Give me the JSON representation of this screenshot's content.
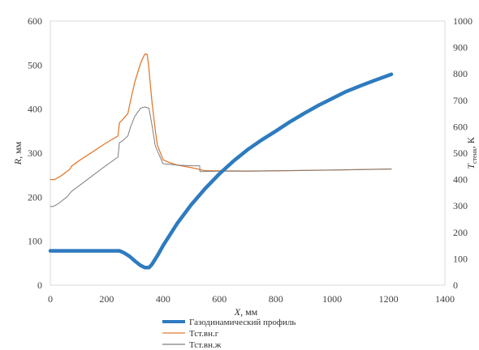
{
  "chart_data": {
    "type": "line",
    "x_ticks": [
      "0",
      "200",
      "400",
      "600",
      "800",
      "1000",
      "1200",
      "1400"
    ],
    "y_ticks": [
      "0",
      "100",
      "200",
      "300",
      "400",
      "500",
      "600"
    ],
    "y2_ticks": [
      "0",
      "100",
      "200",
      "300",
      "400",
      "500",
      "600",
      "700",
      "800",
      "900",
      "1000"
    ],
    "xlim": [
      0,
      1400
    ],
    "ylim": [
      0,
      600
    ],
    "y2lim": [
      0,
      1000
    ],
    "grid": false,
    "legend_position": "bottom",
    "x_axis_label": {
      "main": "X",
      "unit": ", мм"
    },
    "y_axis_label": {
      "main": "R",
      "unit": ", мм"
    },
    "y2_axis_label": {
      "main": "T",
      "sub": "стенк",
      "unit": ", К"
    },
    "series": [
      {
        "name": "Газодинамический профиль",
        "axis": "left",
        "color": "#2e7bbf",
        "width": 4.5,
        "x": [
          0,
          200,
          245,
          260,
          280,
          300,
          320,
          335,
          350,
          360,
          380,
          400,
          450,
          500,
          550,
          600,
          650,
          700,
          750,
          800,
          850,
          900,
          950,
          1000,
          1050,
          1100,
          1150,
          1210
        ],
        "y": [
          78,
          78,
          78,
          74,
          66,
          55,
          45,
          40,
          40,
          47,
          67,
          90,
          140,
          183,
          220,
          253,
          282,
          308,
          330,
          350,
          371,
          390,
          408,
          424,
          440,
          453,
          465,
          479
        ]
      },
      {
        "name": "Тст.вн.г",
        "axis": "right",
        "color": "#e07b30",
        "width": 1.3,
        "x": [
          0,
          15,
          40,
          70,
          75,
          100,
          150,
          200,
          240,
          245,
          255,
          275,
          285,
          300,
          320,
          335,
          343,
          348,
          360,
          372,
          380,
          400,
          420,
          450,
          500,
          550,
          600,
          700,
          800,
          1000,
          1210
        ],
        "y": [
          400,
          400,
          415,
          440,
          450,
          470,
          505,
          540,
          565,
          615,
          625,
          650,
          700,
          770,
          840,
          875,
          875,
          840,
          700,
          590,
          530,
          475,
          465,
          455,
          445,
          433,
          433,
          432,
          433,
          436,
          440
        ]
      },
      {
        "name": "Тст.вн.ж",
        "axis": "right",
        "color": "#7f7f7f",
        "width": 1.0,
        "x": [
          0,
          10,
          30,
          60,
          75,
          100,
          150,
          200,
          240,
          245,
          255,
          275,
          285,
          300,
          320,
          335,
          350,
          360,
          372,
          380,
          400,
          450,
          500,
          530,
          531,
          600,
          700,
          800,
          1000,
          1210
        ],
        "y": [
          298,
          298,
          310,
          335,
          355,
          375,
          415,
          455,
          485,
          540,
          545,
          565,
          600,
          640,
          670,
          675,
          670,
          610,
          530,
          508,
          460,
          455,
          452,
          452,
          430,
          432,
          432,
          433,
          436,
          440
        ]
      }
    ]
  }
}
